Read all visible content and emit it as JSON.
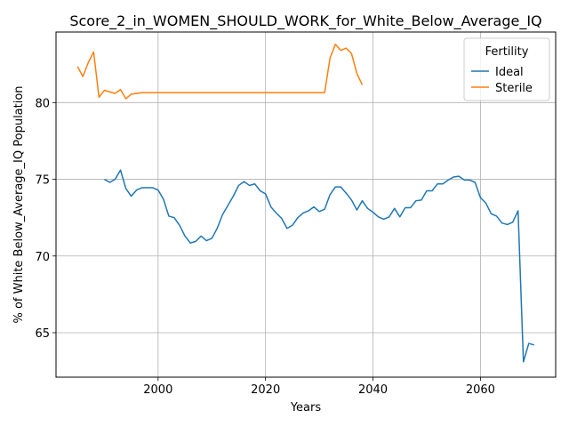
{
  "chart_data": {
    "type": "line",
    "title": "Score_2_in_WOMEN_SHOULD_WORK_for_White_Below_Average_IQ",
    "xlabel": "Years",
    "ylabel": "% of White Below_Average_IQ Population",
    "xlim": [
      1981,
      2074
    ],
    "ylim": [
      62.1,
      84.6
    ],
    "xticks": [
      2000,
      2020,
      2040,
      2060
    ],
    "yticks": [
      65,
      70,
      75,
      80
    ],
    "grid": true,
    "legend": {
      "title": "Fertility",
      "placement": "top-right"
    },
    "series": [
      {
        "name": "Ideal",
        "color": "#1f77b4",
        "points": [
          [
            1990,
            75.0
          ],
          [
            1991,
            74.8
          ],
          [
            1992,
            75.0
          ],
          [
            1993,
            75.6
          ],
          [
            1994,
            74.4
          ],
          [
            1995,
            73.9
          ],
          [
            1996,
            74.3
          ],
          [
            1997,
            74.45
          ],
          [
            1998,
            74.45
          ],
          [
            1999,
            74.45
          ],
          [
            2000,
            74.3
          ],
          [
            2001,
            73.7
          ],
          [
            2002,
            72.6
          ],
          [
            2003,
            72.5
          ],
          [
            2004,
            72.0
          ],
          [
            2005,
            71.3
          ],
          [
            2006,
            70.85
          ],
          [
            2007,
            70.95
          ],
          [
            2008,
            71.3
          ],
          [
            2009,
            71.0
          ],
          [
            2010,
            71.15
          ],
          [
            2011,
            71.8
          ],
          [
            2012,
            72.7
          ],
          [
            2013,
            73.3
          ],
          [
            2014,
            73.9
          ],
          [
            2015,
            74.6
          ],
          [
            2016,
            74.85
          ],
          [
            2017,
            74.6
          ],
          [
            2018,
            74.7
          ],
          [
            2019,
            74.25
          ],
          [
            2020,
            74.05
          ],
          [
            2021,
            73.2
          ],
          [
            2022,
            72.8
          ],
          [
            2023,
            72.45
          ],
          [
            2024,
            71.8
          ],
          [
            2025,
            72.0
          ],
          [
            2026,
            72.5
          ],
          [
            2027,
            72.8
          ],
          [
            2028,
            72.95
          ],
          [
            2029,
            73.2
          ],
          [
            2030,
            72.9
          ],
          [
            2031,
            73.05
          ],
          [
            2032,
            74.0
          ],
          [
            2033,
            74.5
          ],
          [
            2034,
            74.5
          ],
          [
            2035,
            74.1
          ],
          [
            2036,
            73.65
          ],
          [
            2037,
            73.0
          ],
          [
            2038,
            73.6
          ],
          [
            2039,
            73.1
          ],
          [
            2040,
            72.85
          ],
          [
            2041,
            72.55
          ],
          [
            2042,
            72.4
          ],
          [
            2043,
            72.55
          ],
          [
            2044,
            73.1
          ],
          [
            2045,
            72.55
          ],
          [
            2046,
            73.15
          ],
          [
            2047,
            73.15
          ],
          [
            2048,
            73.6
          ],
          [
            2049,
            73.65
          ],
          [
            2050,
            74.25
          ],
          [
            2051,
            74.25
          ],
          [
            2052,
            74.7
          ],
          [
            2053,
            74.7
          ],
          [
            2054,
            74.95
          ],
          [
            2055,
            75.15
          ],
          [
            2056,
            75.2
          ],
          [
            2057,
            74.95
          ],
          [
            2058,
            74.95
          ],
          [
            2059,
            74.8
          ],
          [
            2060,
            73.8
          ],
          [
            2061,
            73.45
          ],
          [
            2062,
            72.75
          ],
          [
            2063,
            72.6
          ],
          [
            2064,
            72.15
          ],
          [
            2065,
            72.05
          ],
          [
            2066,
            72.2
          ],
          [
            2067,
            72.95
          ],
          [
            2068,
            63.1
          ],
          [
            2069,
            64.3
          ],
          [
            2070,
            64.2
          ]
        ]
      },
      {
        "name": "Sterile",
        "color": "#ff7f0e",
        "points": [
          [
            1985,
            82.35
          ],
          [
            1986,
            81.7
          ],
          [
            1987,
            82.6
          ],
          [
            1988,
            83.3
          ],
          [
            1989,
            80.35
          ],
          [
            1990,
            80.8
          ],
          [
            1991,
            80.7
          ],
          [
            1992,
            80.6
          ],
          [
            1993,
            80.85
          ],
          [
            1994,
            80.25
          ],
          [
            1995,
            80.55
          ],
          [
            1996,
            80.6
          ],
          [
            1997,
            80.65
          ],
          [
            2000,
            80.65
          ],
          [
            2010,
            80.65
          ],
          [
            2020,
            80.65
          ],
          [
            2031,
            80.65
          ],
          [
            2032,
            82.9
          ],
          [
            2033,
            83.8
          ],
          [
            2034,
            83.4
          ],
          [
            2035,
            83.55
          ],
          [
            2036,
            83.2
          ],
          [
            2037,
            81.9
          ],
          [
            2038,
            81.15
          ]
        ]
      }
    ]
  }
}
